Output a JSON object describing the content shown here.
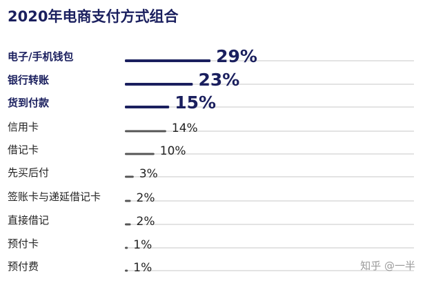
{
  "chart_data": {
    "type": "bar",
    "orientation": "horizontal",
    "title": "2020年电商支付方式组合",
    "xlabel": "",
    "ylabel": "",
    "xlim": [
      0,
      100
    ],
    "grid": false,
    "legend": "none",
    "categories": [
      "电子/手机钱包",
      "银行转账",
      "货到付款",
      "信用卡",
      "借记卡",
      "先买后付",
      "签账卡与递延借记卡",
      "直接借记",
      "预付卡",
      "预付费"
    ],
    "values": [
      29,
      23,
      15,
      14,
      10,
      3,
      2,
      2,
      1,
      1
    ],
    "value_labels": [
      "29%",
      "23%",
      "15%",
      "14%",
      "10%",
      "3%",
      "2%",
      "2%",
      "1%",
      "1%"
    ],
    "highlighted": [
      true,
      true,
      true,
      false,
      false,
      false,
      false,
      false,
      false,
      false
    ]
  },
  "colors": {
    "title": "#1a1f5e",
    "highlight": "#1a1f5e",
    "normal_bar": "#555555",
    "normal_text": "#222222",
    "track": "#e3e3e3"
  },
  "watermark": "知乎 @一半"
}
